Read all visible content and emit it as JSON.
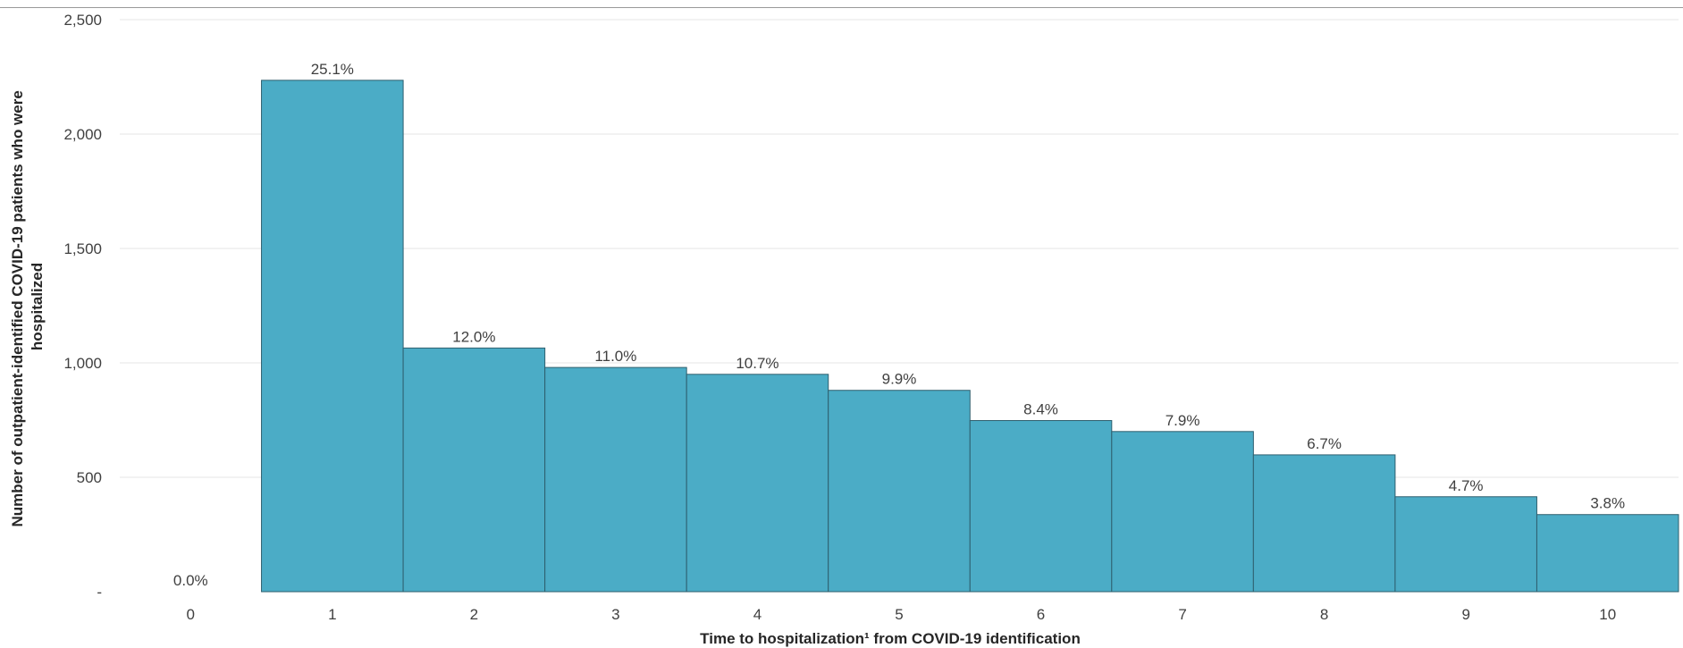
{
  "chart_data": {
    "type": "bar",
    "xlabel": "Time to hospitalization¹ from COVID-19 identification",
    "ylabel_lines": [
      "Number of outpatient-identified COVID-19 patients who were",
      "hospitalized"
    ],
    "categories": [
      "0",
      "1",
      "2",
      "3",
      "4",
      "5",
      "6",
      "7",
      "8",
      "9",
      "10"
    ],
    "values": [
      0,
      2235,
      1065,
      980,
      950,
      880,
      748,
      700,
      598,
      415,
      337
    ],
    "data_labels": [
      "0.0%",
      "25.1%",
      "12.0%",
      "11.0%",
      "10.7%",
      "9.9%",
      "8.4%",
      "7.9%",
      "6.7%",
      "4.7%",
      "3.8%"
    ],
    "ylim": [
      0,
      2500
    ],
    "yticks": [
      0,
      500,
      1000,
      1500,
      2000,
      2500
    ],
    "ytick_labels": [
      "-",
      "500",
      "1,000",
      "1,500",
      "2,000",
      "2,500"
    ],
    "grid": true,
    "bar_color": "#4BACC6",
    "bar_edge_color": "#2E5F6E",
    "grid_color": "#E6E6E6"
  }
}
